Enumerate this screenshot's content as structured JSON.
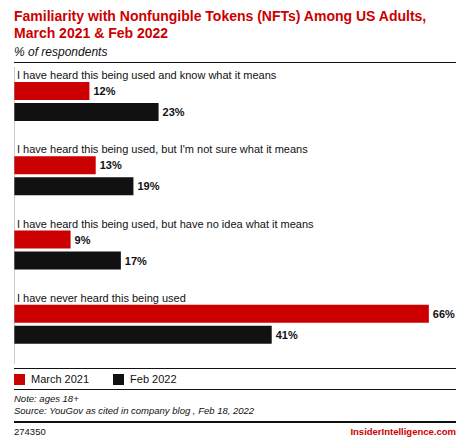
{
  "chart_data": {
    "type": "bar",
    "orientation": "horizontal",
    "title": "Familiarity with Nonfungible Tokens (NFTs) Among US Adults, March 2021 & Feb 2022",
    "subtitle": "% of respondents",
    "categories": [
      "I have heard this being used and know what it means",
      "I have heard this being used, but I'm not sure what it means",
      "I have heard this being used, but have no idea what it means",
      "I have never heard this being used"
    ],
    "series": [
      {
        "name": "March 2021",
        "color": "#cc0000",
        "values": [
          12,
          13,
          9,
          66
        ],
        "value_labels": [
          "12%",
          "13%",
          "9%",
          "66%"
        ]
      },
      {
        "name": "Feb 2022",
        "color": "#111111",
        "values": [
          23,
          19,
          17,
          41
        ],
        "value_labels": [
          "23%",
          "19%",
          "17%",
          "41%"
        ]
      }
    ],
    "xlim": [
      0,
      70
    ],
    "data_labels": true,
    "tick_labels": false,
    "grid": false,
    "legend": "bottom",
    "annotations": [
      "Note: ages 18+",
      "Source: YouGov as cited in company blog , Feb 18, 2022",
      "274350",
      "InsiderIntelligence.com"
    ]
  }
}
